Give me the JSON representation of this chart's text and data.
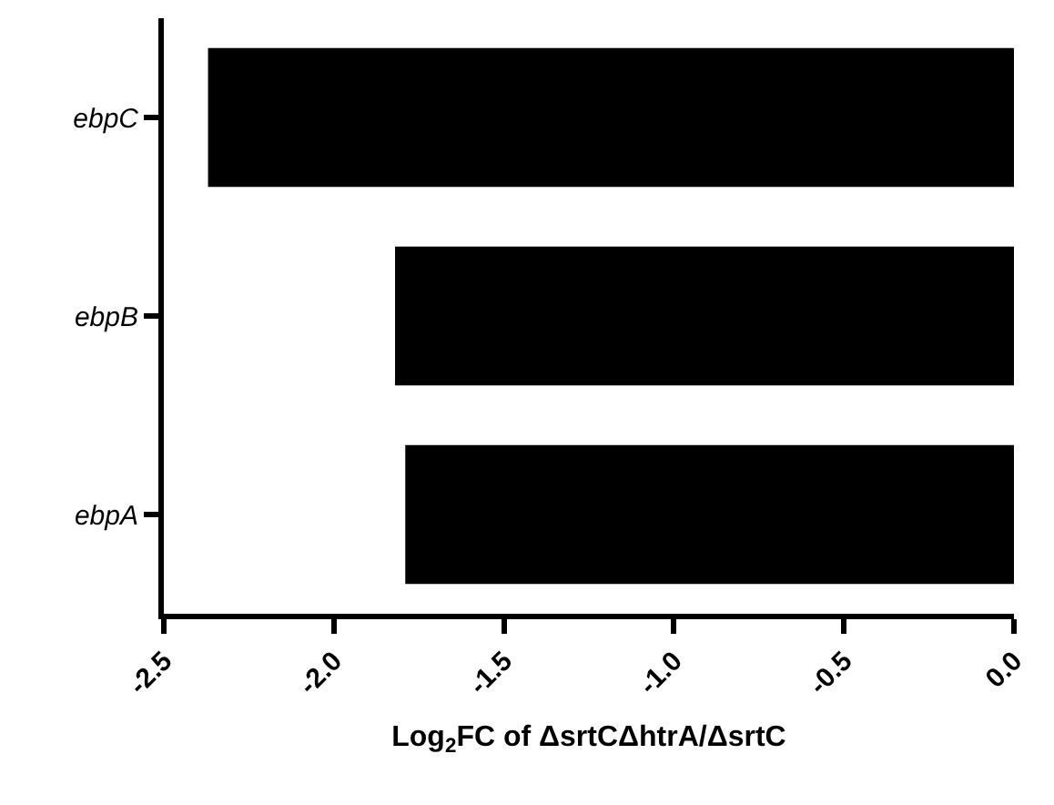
{
  "chart_data": {
    "type": "bar",
    "orientation": "horizontal",
    "xlabel": "Log$_{2}$FC of ΔsrtCΔhtrA/ΔsrtC",
    "categories": [
      "ebpC",
      "ebpB",
      "ebpA"
    ],
    "values": [
      -2.37,
      -1.82,
      -1.79
    ],
    "color": "#000000",
    "xlim": [
      -2.5,
      0
    ],
    "xticks": [
      -2.5,
      {
        "value": -2,
        "label": "-2.0"
      },
      -1.5,
      {
        "value": -1,
        "label": "-1.0"
      },
      -0.5,
      {
        "value": 0,
        "label": "0.0"
      }
    ]
  }
}
